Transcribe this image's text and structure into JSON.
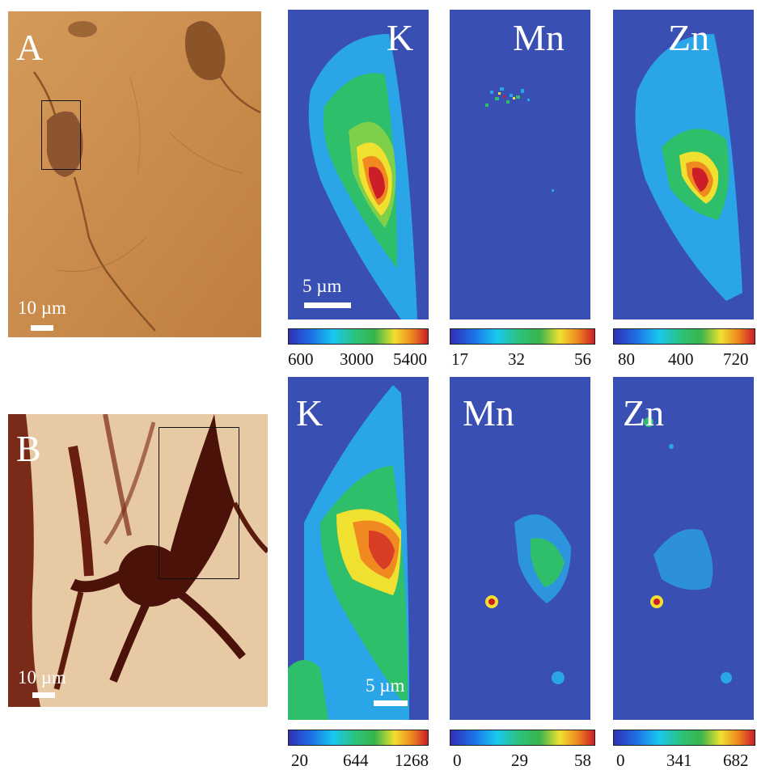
{
  "panels": {
    "A": {
      "letter": "A",
      "scale_label": "10 µm",
      "maps": [
        {
          "element": "K",
          "scale_label": "5 µm",
          "ticks": [
            "600",
            "3000",
            "5400"
          ]
        },
        {
          "element": "Mn",
          "scale_label": "",
          "ticks": [
            "17",
            "32",
            "56"
          ]
        },
        {
          "element": "Zn",
          "scale_label": "",
          "ticks": [
            "80",
            "400",
            "720"
          ]
        }
      ]
    },
    "B": {
      "letter": "B",
      "scale_label": "10 µm",
      "maps": [
        {
          "element": "K",
          "scale_label": "5 µm",
          "ticks": [
            "20",
            "644",
            "1268"
          ]
        },
        {
          "element": "Mn",
          "scale_label": "",
          "ticks": [
            "0",
            "29",
            "58"
          ]
        },
        {
          "element": "Zn",
          "scale_label": "",
          "ticks": [
            "0",
            "341",
            "682"
          ]
        }
      ]
    }
  },
  "colors": {
    "map_background": "#3a4fb4",
    "micrograph_A": "#c8894a",
    "micrograph_B": "#e7c9a3",
    "stain_dark": "#4a1208"
  }
}
